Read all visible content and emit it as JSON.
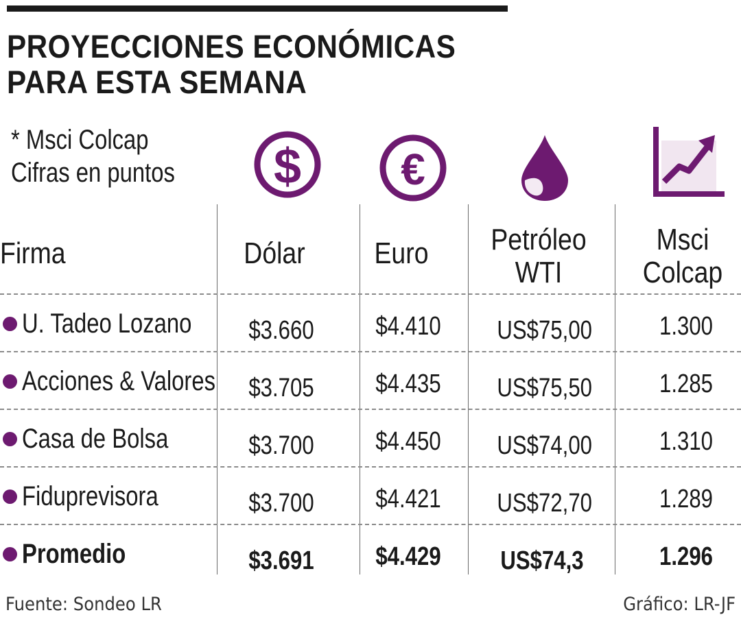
{
  "title": "PROYECCIONES ECONÓMICAS\nPARA ESTA SEMANA",
  "note": "* Msci Colcap\nCifras en puntos",
  "colors": {
    "accent": "#6d1a70",
    "accent_light": "#f1e6f0",
    "text": "#1a1a1a",
    "rule": "#8a8a8a"
  },
  "icons": [
    "dollar-icon",
    "euro-icon",
    "oil-drop-icon",
    "trend-chart-icon"
  ],
  "chart_data": {
    "type": "table",
    "title": "PROYECCIONES ECONÓMICAS PARA ESTA SEMANA",
    "note": "* Msci Colcap Cifras en puntos",
    "columns": [
      "Firma",
      "Dólar",
      "Euro",
      "Petróleo\nWTI",
      "Msci\nColcap"
    ],
    "rows": [
      {
        "firma": "U. Tadeo Lozano",
        "dolar": "$3.660",
        "euro": "$4.410",
        "petroleo": "US$75,00",
        "colcap": "1.300"
      },
      {
        "firma": "Acciones & Valores",
        "dolar": "$3.705",
        "euro": "$4.435",
        "petroleo": "US$75,50",
        "colcap": "1.285"
      },
      {
        "firma": "Casa de Bolsa",
        "dolar": "$3.700",
        "euro": "$4.450",
        "petroleo": "US$74,00",
        "colcap": "1.310"
      },
      {
        "firma": "Fiduprevisora",
        "dolar": "$3.700",
        "euro": "$4.421",
        "petroleo": "US$72,70",
        "colcap": "1.289"
      },
      {
        "firma": "Promedio",
        "dolar": "$3.691",
        "euro": "$4.429",
        "petroleo": "US$74,3",
        "colcap": "1.296"
      }
    ]
  },
  "footer": {
    "source": "Fuente: Sondeo LR",
    "credit": "Gráfico: LR-JF"
  }
}
